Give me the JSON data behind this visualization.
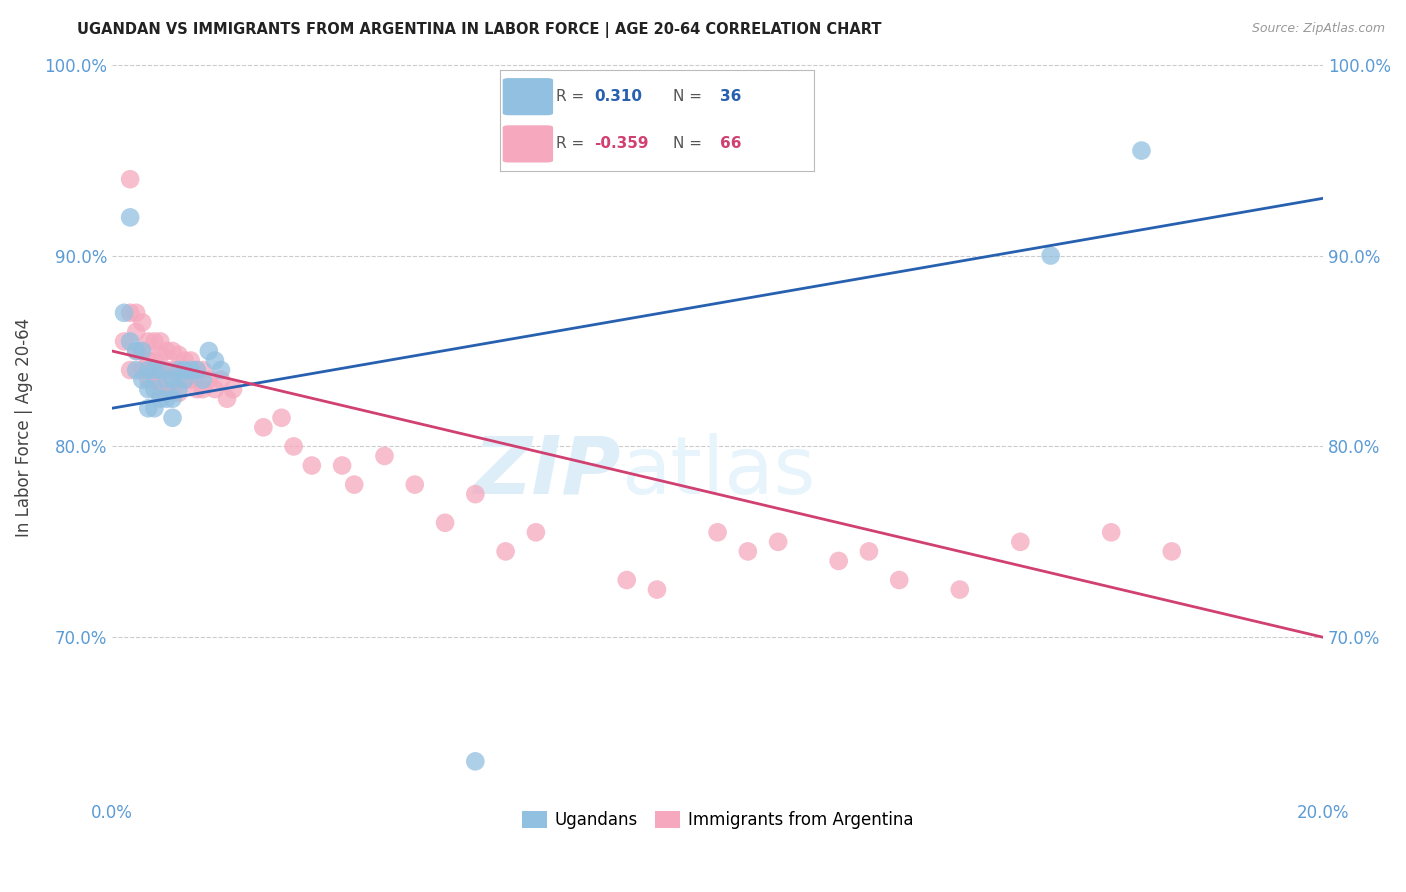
{
  "title": "UGANDAN VS IMMIGRANTS FROM ARGENTINA IN LABOR FORCE | AGE 20-64 CORRELATION CHART",
  "source": "Source: ZipAtlas.com",
  "ylabel": "In Labor Force | Age 20-64",
  "xlim": [
    0.0,
    0.2
  ],
  "ylim": [
    0.615,
    1.005
  ],
  "yticks": [
    0.7,
    0.8,
    0.9,
    1.0
  ],
  "ytick_labels": [
    "70.0%",
    "80.0%",
    "90.0%",
    "100.0%"
  ],
  "xticks": [
    0.0,
    0.05,
    0.1,
    0.15,
    0.2
  ],
  "xtick_labels": [
    "0.0%",
    "",
    "",
    "",
    "20.0%"
  ],
  "background_color": "#ffffff",
  "grid_color": "#cccccc",
  "title_color": "#222222",
  "axis_color": "#5b9bd5",
  "blue_color": "#92c0e0",
  "pink_color": "#f5a8be",
  "line_blue": "#2860b0",
  "line_pink": "#d04070",
  "watermark_color": "#ddeef8",
  "ugandan_x": [
    0.002,
    0.003,
    0.003,
    0.004,
    0.004,
    0.005,
    0.005,
    0.006,
    0.006,
    0.006,
    0.007,
    0.007,
    0.007,
    0.008,
    0.008,
    0.009,
    0.009,
    0.01,
    0.01,
    0.01,
    0.011,
    0.011,
    0.012,
    0.012,
    0.013,
    0.014,
    0.015,
    0.016,
    0.017,
    0.018,
    0.06,
    0.155,
    0.17
  ],
  "ugandan_y": [
    0.87,
    0.92,
    0.855,
    0.85,
    0.84,
    0.85,
    0.835,
    0.84,
    0.83,
    0.82,
    0.84,
    0.83,
    0.82,
    0.84,
    0.825,
    0.835,
    0.825,
    0.835,
    0.825,
    0.815,
    0.84,
    0.83,
    0.84,
    0.835,
    0.84,
    0.84,
    0.835,
    0.85,
    0.845,
    0.84,
    0.635,
    0.9,
    0.955
  ],
  "argentina_x": [
    0.002,
    0.003,
    0.003,
    0.003,
    0.004,
    0.004,
    0.004,
    0.005,
    0.005,
    0.005,
    0.006,
    0.006,
    0.006,
    0.007,
    0.007,
    0.007,
    0.008,
    0.008,
    0.008,
    0.008,
    0.009,
    0.009,
    0.009,
    0.01,
    0.01,
    0.01,
    0.011,
    0.011,
    0.011,
    0.012,
    0.012,
    0.013,
    0.013,
    0.014,
    0.014,
    0.015,
    0.015,
    0.016,
    0.017,
    0.018,
    0.019,
    0.02,
    0.025,
    0.028,
    0.03,
    0.033,
    0.038,
    0.04,
    0.045,
    0.05,
    0.055,
    0.06,
    0.065,
    0.07,
    0.085,
    0.09,
    0.1,
    0.105,
    0.11,
    0.12,
    0.125,
    0.13,
    0.14,
    0.15,
    0.165,
    0.175
  ],
  "argentina_y": [
    0.855,
    0.94,
    0.87,
    0.84,
    0.87,
    0.86,
    0.85,
    0.865,
    0.85,
    0.84,
    0.855,
    0.845,
    0.835,
    0.855,
    0.845,
    0.835,
    0.855,
    0.848,
    0.838,
    0.828,
    0.85,
    0.84,
    0.83,
    0.85,
    0.84,
    0.83,
    0.848,
    0.838,
    0.828,
    0.845,
    0.835,
    0.845,
    0.835,
    0.84,
    0.83,
    0.84,
    0.83,
    0.835,
    0.83,
    0.835,
    0.825,
    0.83,
    0.81,
    0.815,
    0.8,
    0.79,
    0.79,
    0.78,
    0.795,
    0.78,
    0.76,
    0.775,
    0.745,
    0.755,
    0.73,
    0.725,
    0.755,
    0.745,
    0.75,
    0.74,
    0.745,
    0.73,
    0.725,
    0.75,
    0.755,
    0.745
  ]
}
